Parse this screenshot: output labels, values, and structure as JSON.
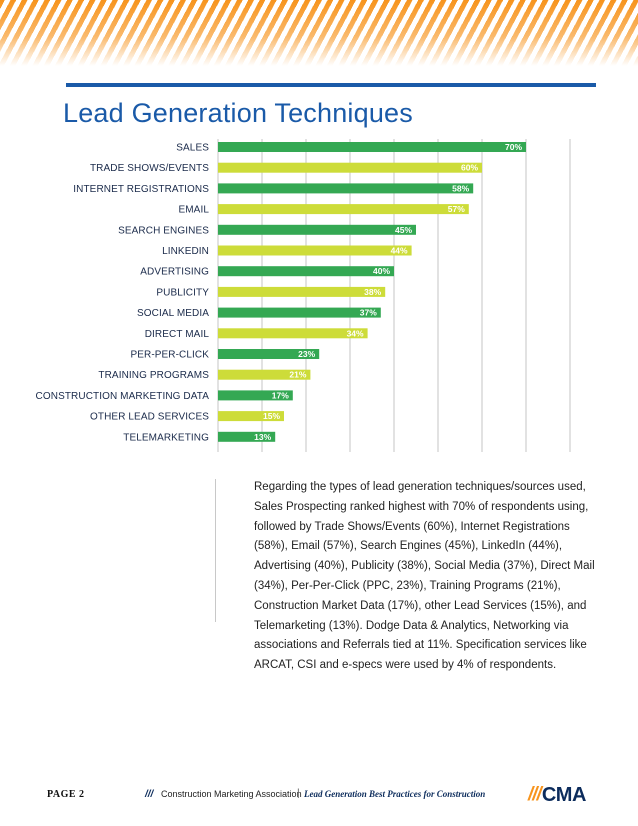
{
  "colors": {
    "dark_green": "#34a853",
    "light_green": "#cddc39",
    "title_blue": "#1a5aa8",
    "rule_blue": "#1a5aa8",
    "grid": "#c4c4c4",
    "orange": "#f7941d",
    "logo_navy": "#0c2c5c"
  },
  "page": {
    "title": "Lead Generation Techniques"
  },
  "chart_data": {
    "type": "bar",
    "orientation": "horizontal",
    "categories": [
      "SALES",
      "TRADE SHOWS/EVENTS",
      "INTERNET REGISTRATIONS",
      "EMAIL",
      "SEARCH ENGINES",
      "LINKEDIN",
      "ADVERTISING",
      "PUBLICITY",
      "SOCIAL MEDIA",
      "DIRECT MAIL",
      "PER-PER-CLICK",
      "TRAINING PROGRAMS",
      "CONSTRUCTION MARKETING DATA",
      "OTHER LEAD SERVICES",
      "TELEMARKETING"
    ],
    "values": [
      70,
      60,
      58,
      57,
      45,
      44,
      40,
      38,
      37,
      34,
      23,
      21,
      17,
      15,
      13
    ],
    "value_labels": [
      "70%",
      "60%",
      "58%",
      "57%",
      "45%",
      "44%",
      "40%",
      "38%",
      "37%",
      "34%",
      "23%",
      "21%",
      "17%",
      "15%",
      "13%"
    ],
    "bar_colors": [
      "dark_green",
      "light_green",
      "dark_green",
      "light_green",
      "dark_green",
      "light_green",
      "dark_green",
      "light_green",
      "dark_green",
      "light_green",
      "dark_green",
      "light_green",
      "dark_green",
      "light_green",
      "dark_green"
    ],
    "xlim": [
      0,
      80
    ],
    "grid": true,
    "grid_step": 10,
    "xlabel": "",
    "ylabel": ""
  },
  "description": "Regarding the types of lead generation techniques/sources used, Sales Prospecting ranked highest with 70% of respondents using, followed by Trade Shows/Events (60%), Internet Registrations (58%), Email (57%), Search Engines (45%), LinkedIn (44%), Advertising (40%), Publicity (38%), Social Media (37%), Direct Mail (34%), Per-Per-Click (PPC, 23%), Training Programs (21%), Construction Market Data (17%), other Lead Services (15%), and Telemarketing (13%). Dodge Data & Analytics, Networking via associations and Referrals tied at 11%. Specification services like ARCAT, CSI and e-specs were used by 4% of respondents.",
  "footer": {
    "page_label": "PAGE  2",
    "slashes": "///",
    "association": "Construction Marketing Association",
    "separator": "|",
    "document": "Lead Generation Best Practices for Construction",
    "logo_slashes": "///",
    "logo_text": "CMA"
  }
}
